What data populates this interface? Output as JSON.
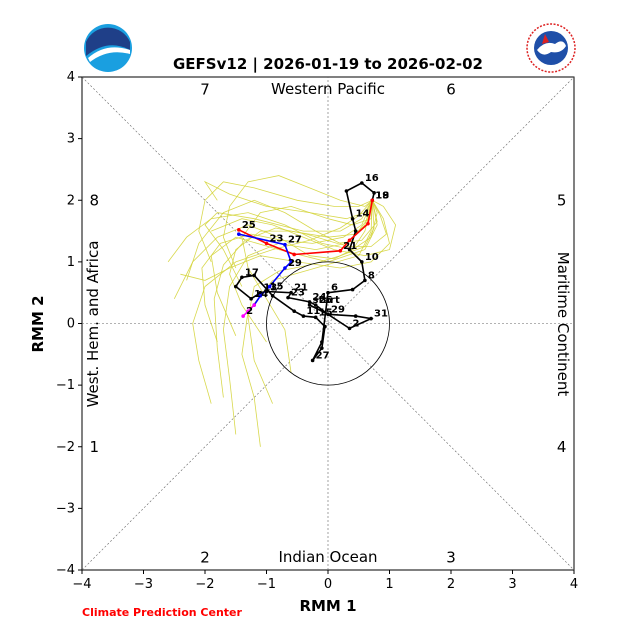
{
  "chart_data": {
    "type": "line",
    "title": "GEFSv12 | 2026-01-19 to 2026-02-02",
    "xlabel": "RMM 1",
    "ylabel": "RMM 2",
    "xlim": [
      -4,
      4
    ],
    "ylim": [
      -4,
      4
    ],
    "xticks": [
      "−4",
      "−3",
      "−2",
      "−1",
      "0",
      "1",
      "2",
      "3",
      "4"
    ],
    "yticks": [
      "−4",
      "−3",
      "−2",
      "−1",
      "0",
      "1",
      "2",
      "3",
      "4"
    ],
    "regions": {
      "top": "Western Pacific",
      "bottom": "Indian Ocean",
      "left": "West. Hem. and Africa",
      "right": "Maritime Continent"
    },
    "phases": [
      {
        "label": "1",
        "x": -3.8,
        "y": -2.0
      },
      {
        "label": "2",
        "x": -2.0,
        "y": -3.8
      },
      {
        "label": "3",
        "x": 2.0,
        "y": -3.8
      },
      {
        "label": "4",
        "x": 3.8,
        "y": -2.0
      },
      {
        "label": "5",
        "x": 3.8,
        "y": 2.0
      },
      {
        "label": "6",
        "x": 2.0,
        "y": 3.8
      },
      {
        "label": "7",
        "x": -2.0,
        "y": 3.8
      },
      {
        "label": "8",
        "x": -3.8,
        "y": 2.0
      }
    ],
    "unit_circle_radius": 1,
    "observed": {
      "color": "#000000",
      "points": [
        {
          "x": -0.3,
          "y": 0.3,
          "label": "start"
        },
        {
          "x": 0.0,
          "y": 0.15
        },
        {
          "x": 0.35,
          "y": -0.08,
          "label": "2"
        },
        {
          "x": 0.7,
          "y": 0.08,
          "label": "31"
        },
        {
          "x": 0.45,
          "y": 0.12
        },
        {
          "x": 0.0,
          "y": 0.15,
          "label": "29"
        },
        {
          "x": -0.2,
          "y": 0.3,
          "label": "25"
        },
        {
          "x": -0.3,
          "y": 0.35,
          "label": "24"
        },
        {
          "x": -0.65,
          "y": 0.42,
          "label": "23"
        },
        {
          "x": -0.6,
          "y": 0.5,
          "label": "21"
        },
        {
          "x": -1.0,
          "y": 0.52,
          "label": "15"
        },
        {
          "x": -1.1,
          "y": 0.5,
          "label": "13"
        },
        {
          "x": -1.25,
          "y": 0.4,
          "label": "14"
        },
        {
          "x": -1.5,
          "y": 0.6
        },
        {
          "x": -1.4,
          "y": 0.75,
          "label": "17"
        },
        {
          "x": -1.2,
          "y": 0.78
        },
        {
          "x": -0.9,
          "y": 0.45
        },
        {
          "x": -0.55,
          "y": 0.2
        },
        {
          "x": -0.4,
          "y": 0.12,
          "label": "11"
        },
        {
          "x": -0.2,
          "y": 0.1,
          "label": "15"
        },
        {
          "x": -0.05,
          "y": -0.05
        },
        {
          "x": -0.1,
          "y": -0.4
        },
        {
          "x": -0.25,
          "y": -0.6,
          "label": "27"
        },
        {
          "x": -0.1,
          "y": -0.3
        },
        {
          "x": 0.0,
          "y": 0.5,
          "label": "6"
        },
        {
          "x": 0.4,
          "y": 0.55
        },
        {
          "x": 0.6,
          "y": 0.7,
          "label": "8"
        },
        {
          "x": 0.55,
          "y": 1.0,
          "label": "10"
        },
        {
          "x": 0.35,
          "y": 1.2
        },
        {
          "x": 0.45,
          "y": 1.5
        },
        {
          "x": 0.4,
          "y": 1.7,
          "label": "14"
        },
        {
          "x": 0.3,
          "y": 2.15
        },
        {
          "x": 0.55,
          "y": 2.28,
          "label": "16"
        },
        {
          "x": 0.75,
          "y": 2.12
        },
        {
          "x": 0.72,
          "y": 2.0,
          "label": "18"
        }
      ]
    },
    "forecast_mean": {
      "segments": [
        {
          "color": "#ff0000",
          "points": [
            {
              "x": 0.72,
              "y": 2.0,
              "label": "19"
            },
            {
              "x": 0.65,
              "y": 1.62
            },
            {
              "x": 0.35,
              "y": 1.35
            },
            {
              "x": 0.2,
              "y": 1.18,
              "label": "21"
            },
            {
              "x": -0.55,
              "y": 1.12
            },
            {
              "x": -1.0,
              "y": 1.3,
              "label": "23"
            },
            {
              "x": -1.45,
              "y": 1.52,
              "label": "25"
            }
          ]
        },
        {
          "color": "#0000ff",
          "points": [
            {
              "x": -1.45,
              "y": 1.45
            },
            {
              "x": -0.7,
              "y": 1.28,
              "label": "27"
            },
            {
              "x": -0.6,
              "y": 1.0
            },
            {
              "x": -0.7,
              "y": 0.9,
              "label": "29"
            },
            {
              "x": -0.95,
              "y": 0.6
            },
            {
              "x": -1.1,
              "y": 0.45
            },
            {
              "x": -1.2,
              "y": 0.3
            }
          ]
        },
        {
          "color": "#ff00ff",
          "points": [
            {
              "x": -1.2,
              "y": 0.3
            },
            {
              "x": -1.3,
              "y": 0.2
            },
            {
              "x": -1.38,
              "y": 0.12,
              "label": "2"
            }
          ]
        }
      ]
    },
    "ensemble": {
      "color": "#d4d43a",
      "members": [
        [
          [
            0.72,
            2.0
          ],
          [
            0.55,
            1.7
          ],
          [
            0.2,
            1.5
          ],
          [
            -0.4,
            1.5
          ],
          [
            -1.2,
            1.7
          ],
          [
            -1.8,
            1.8
          ],
          [
            -2.0,
            1.6
          ],
          [
            -1.7,
            1.2
          ],
          [
            -1.4,
            0.6
          ]
        ],
        [
          [
            0.72,
            2.0
          ],
          [
            0.8,
            1.6
          ],
          [
            0.6,
            1.2
          ],
          [
            0.0,
            1.0
          ],
          [
            -0.8,
            1.2
          ],
          [
            -1.5,
            1.4
          ],
          [
            -1.9,
            1.1
          ],
          [
            -1.8,
            0.5
          ],
          [
            -1.5,
            -0.2
          ]
        ],
        [
          [
            0.72,
            2.0
          ],
          [
            0.6,
            1.8
          ],
          [
            0.3,
            1.7
          ],
          [
            -0.3,
            1.8
          ],
          [
            -1.0,
            1.9
          ],
          [
            -1.6,
            2.1
          ],
          [
            -2.0,
            2.3
          ],
          [
            -1.8,
            2.0
          ]
        ],
        [
          [
            0.72,
            2.0
          ],
          [
            0.7,
            1.5
          ],
          [
            0.5,
            1.1
          ],
          [
            -0.2,
            0.9
          ],
          [
            -0.9,
            0.7
          ],
          [
            -1.3,
            0.2
          ],
          [
            -1.4,
            -0.5
          ],
          [
            -1.2,
            -1.2
          ],
          [
            -1.1,
            -2.0
          ]
        ],
        [
          [
            0.72,
            2.0
          ],
          [
            0.9,
            1.7
          ],
          [
            1.0,
            1.3
          ],
          [
            0.7,
            1.0
          ],
          [
            0.2,
            0.9
          ],
          [
            -0.5,
            1.0
          ],
          [
            -1.1,
            1.1
          ],
          [
            -1.6,
            0.9
          ],
          [
            -2.0,
            0.7
          ],
          [
            -2.4,
            0.8
          ]
        ],
        [
          [
            0.72,
            2.0
          ],
          [
            0.5,
            1.9
          ],
          [
            0.1,
            1.9
          ],
          [
            -0.5,
            2.0
          ],
          [
            -1.2,
            2.2
          ],
          [
            -1.7,
            2.3
          ],
          [
            -2.0,
            2.0
          ],
          [
            -2.1,
            1.5
          ],
          [
            -1.9,
            1.0
          ]
        ],
        [
          [
            0.72,
            2.0
          ],
          [
            0.6,
            1.6
          ],
          [
            0.3,
            1.3
          ],
          [
            -0.2,
            1.2
          ],
          [
            -0.8,
            1.3
          ],
          [
            -1.3,
            1.1
          ],
          [
            -1.6,
            0.6
          ],
          [
            -1.7,
            -0.1
          ],
          [
            -1.6,
            -0.9
          ],
          [
            -1.5,
            -1.8
          ]
        ],
        [
          [
            0.72,
            2.0
          ],
          [
            0.8,
            1.8
          ],
          [
            0.7,
            1.4
          ],
          [
            0.4,
            1.2
          ],
          [
            -0.1,
            1.3
          ],
          [
            -0.7,
            1.6
          ],
          [
            -1.3,
            1.8
          ],
          [
            -1.9,
            1.7
          ],
          [
            -2.3,
            1.4
          ],
          [
            -2.6,
            1.0
          ]
        ],
        [
          [
            0.72,
            2.0
          ],
          [
            0.65,
            1.7
          ],
          [
            0.45,
            1.45
          ],
          [
            0.0,
            1.4
          ],
          [
            -0.6,
            1.5
          ],
          [
            -1.1,
            1.5
          ],
          [
            -1.5,
            1.2
          ],
          [
            -1.6,
            0.8
          ],
          [
            -1.4,
            0.3
          ],
          [
            -1.0,
            -0.3
          ]
        ],
        [
          [
            0.72,
            2.0
          ],
          [
            0.9,
            1.9
          ],
          [
            1.1,
            1.6
          ],
          [
            1.0,
            1.2
          ],
          [
            0.6,
            1.1
          ],
          [
            0.1,
            1.2
          ],
          [
            -0.4,
            1.4
          ],
          [
            -0.9,
            1.6
          ],
          [
            -1.4,
            1.7
          ],
          [
            -1.9,
            1.5
          ]
        ],
        [
          [
            0.72,
            2.0
          ],
          [
            0.5,
            1.75
          ],
          [
            0.2,
            1.55
          ],
          [
            -0.3,
            1.35
          ],
          [
            -0.9,
            1.2
          ],
          [
            -1.5,
            1.0
          ],
          [
            -2.0,
            0.6
          ],
          [
            -2.2,
            0.0
          ],
          [
            -2.1,
            -0.6
          ],
          [
            -1.9,
            -1.3
          ]
        ],
        [
          [
            0.72,
            2.0
          ],
          [
            0.6,
            1.9
          ],
          [
            0.2,
            2.0
          ],
          [
            -0.3,
            2.2
          ],
          [
            -0.8,
            2.4
          ],
          [
            -1.3,
            2.3
          ],
          [
            -1.6,
            1.9
          ],
          [
            -1.7,
            1.4
          ],
          [
            -1.5,
            0.9
          ]
        ],
        [
          [
            0.72,
            2.0
          ],
          [
            0.75,
            1.55
          ],
          [
            0.6,
            1.25
          ],
          [
            0.2,
            1.1
          ],
          [
            -0.3,
            0.95
          ],
          [
            -0.8,
            0.85
          ],
          [
            -1.2,
            0.6
          ],
          [
            -1.3,
            0.1
          ],
          [
            -1.2,
            -0.6
          ],
          [
            -0.9,
            -1.3
          ]
        ],
        [
          [
            0.72,
            2.0
          ],
          [
            0.85,
            1.75
          ],
          [
            0.95,
            1.45
          ],
          [
            0.7,
            1.25
          ],
          [
            0.3,
            1.25
          ],
          [
            -0.2,
            1.5
          ],
          [
            -0.7,
            1.8
          ],
          [
            -1.2,
            2.0
          ],
          [
            -1.7,
            1.8
          ],
          [
            -2.1,
            1.3
          ],
          [
            -2.3,
            0.7
          ]
        ],
        [
          [
            0.72,
            2.0
          ],
          [
            0.55,
            1.6
          ],
          [
            0.25,
            1.4
          ],
          [
            -0.25,
            1.3
          ],
          [
            -0.75,
            1.35
          ],
          [
            -1.25,
            1.45
          ],
          [
            -1.75,
            1.3
          ],
          [
            -2.05,
            0.9
          ],
          [
            -2.0,
            0.3
          ],
          [
            -1.8,
            -0.3
          ]
        ],
        [
          [
            0.72,
            2.0
          ],
          [
            0.7,
            1.7
          ],
          [
            0.4,
            1.6
          ],
          [
            0.0,
            1.7
          ],
          [
            -0.6,
            1.9
          ],
          [
            -1.1,
            1.8
          ],
          [
            -1.4,
            1.4
          ],
          [
            -1.3,
            0.9
          ],
          [
            -1.0,
            0.4
          ],
          [
            -0.7,
            -0.1
          ],
          [
            -0.6,
            -0.8
          ]
        ],
        [
          [
            0.72,
            2.0
          ],
          [
            0.6,
            1.5
          ],
          [
            0.4,
            1.2
          ],
          [
            0.1,
            1.05
          ],
          [
            -0.3,
            1.1
          ],
          [
            -0.8,
            1.4
          ],
          [
            -1.3,
            1.6
          ],
          [
            -1.8,
            1.4
          ],
          [
            -2.2,
            1.0
          ],
          [
            -2.5,
            0.4
          ]
        ],
        [
          [
            0.72,
            2.0
          ],
          [
            0.8,
            1.65
          ],
          [
            0.55,
            1.35
          ],
          [
            0.15,
            1.3
          ],
          [
            -0.35,
            1.45
          ],
          [
            -0.85,
            1.55
          ],
          [
            -1.35,
            1.35
          ],
          [
            -1.7,
            0.95
          ],
          [
            -1.85,
            0.4
          ],
          [
            -1.8,
            -0.4
          ],
          [
            -1.7,
            -1.2
          ]
        ]
      ]
    },
    "credit": "Climate Prediction Center"
  }
}
